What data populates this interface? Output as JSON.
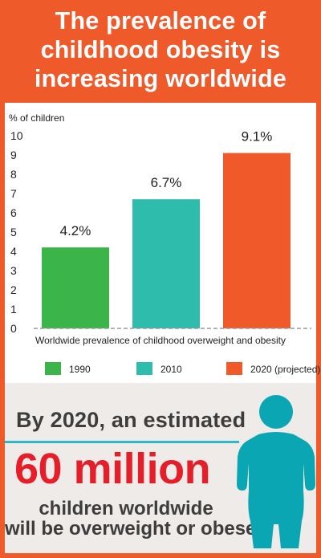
{
  "header": {
    "title_lines": [
      "The prevalence of",
      "childhood obesity is",
      "increasing worldwide"
    ]
  },
  "colors": {
    "background": "#ef5a2a",
    "green": "#3bb54a",
    "teal": "#2ebcac",
    "orange": "#f05a2b",
    "stat_red": "#e51f2a",
    "figure_teal": "#0aa6b4"
  },
  "chart_data": {
    "type": "bar",
    "ylabel": "% of children",
    "xlabel": "Worldwide prevalence of childhood overweight and obesity",
    "ylim": [
      0,
      10
    ],
    "yticks": [
      "0",
      "1",
      "2",
      "3",
      "4",
      "5",
      "6",
      "7",
      "8",
      "9",
      "10"
    ],
    "categories": [
      "1990",
      "2010",
      "2020 (projected)"
    ],
    "values": [
      4.2,
      6.7,
      9.1
    ],
    "value_labels": [
      "4.2%",
      "6.7%",
      "9.1%"
    ],
    "bar_colors": [
      "#3bb54a",
      "#2ebcac",
      "#f05a2b"
    ],
    "legend": [
      "1990",
      "2010",
      "2020 (projected)"
    ],
    "legend_position": "bottom",
    "grid": false
  },
  "stat": {
    "lead": "By 2020, an estimated",
    "highlight": "60 million",
    "line1": "children worldwide",
    "line2": "will be overweight or obese"
  },
  "icons": {
    "figure": "child-figure-icon"
  }
}
